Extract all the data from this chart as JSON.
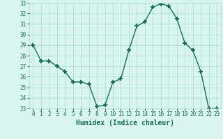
{
  "x": [
    0,
    1,
    2,
    3,
    4,
    5,
    6,
    7,
    8,
    9,
    10,
    11,
    12,
    13,
    14,
    15,
    16,
    17,
    18,
    19,
    20,
    21,
    22,
    23
  ],
  "y": [
    29,
    27.5,
    27.5,
    27,
    26.5,
    25.5,
    25.5,
    25.3,
    23.2,
    23.3,
    25.5,
    25.8,
    28.5,
    30.8,
    31.2,
    32.6,
    32.9,
    32.7,
    31.5,
    29.2,
    28.5,
    26.5,
    23.0,
    23.0
  ],
  "line_color": "#1a6b5a",
  "marker": "+",
  "marker_size": 4,
  "bg_color": "#d8f5f0",
  "grid_color": "#aad8d0",
  "xlabel": "Humidex (Indice chaleur)",
  "ylim": [
    23,
    33
  ],
  "xlim": [
    -0.5,
    23.5
  ],
  "yticks": [
    23,
    24,
    25,
    26,
    27,
    28,
    29,
    30,
    31,
    32,
    33
  ],
  "xticks": [
    0,
    1,
    2,
    3,
    4,
    5,
    6,
    7,
    8,
    9,
    10,
    11,
    12,
    13,
    14,
    15,
    16,
    17,
    18,
    19,
    20,
    21,
    22,
    23
  ],
  "tick_label_size": 5.5,
  "xlabel_size": 7,
  "line_width": 1.0,
  "marker_thickness": 1.5
}
